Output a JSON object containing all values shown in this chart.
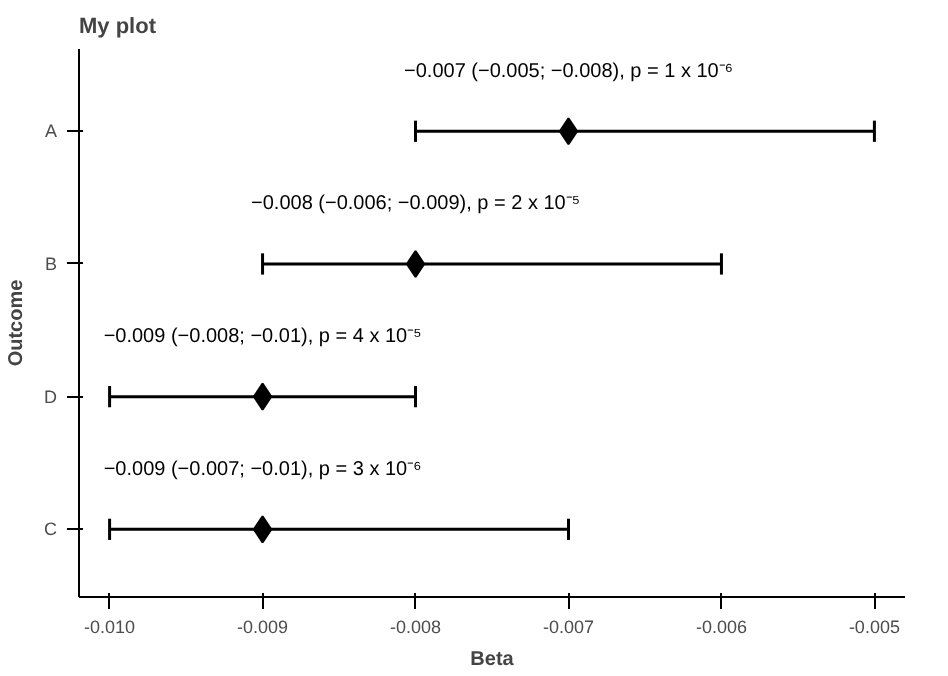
{
  "chart_data": {
    "type": "scatter",
    "orientation": "horizontal",
    "title": "My plot",
    "xlabel": "Beta",
    "ylabel": "Outcome",
    "categories": [
      "A",
      "B",
      "D",
      "C"
    ],
    "values": [
      -0.007,
      -0.008,
      -0.009,
      -0.009
    ],
    "errors": [
      [
        -0.008,
        -0.005
      ],
      [
        -0.009,
        -0.006
      ],
      [
        -0.01,
        -0.008
      ],
      [
        -0.01,
        -0.007
      ]
    ],
    "color": "#000000",
    "marker": "diamond",
    "grid": false,
    "xlim": [
      -0.0102,
      -0.0048
    ],
    "xticks": [
      {
        "value": -0.01,
        "label": "-0.010"
      },
      {
        "value": -0.009,
        "label": "-0.009"
      },
      {
        "value": -0.008,
        "label": "-0.008"
      },
      {
        "value": -0.007,
        "label": "-0.007"
      },
      {
        "value": -0.006,
        "label": "-0.006"
      },
      {
        "value": -0.005,
        "label": "-0.005"
      }
    ],
    "annotations": [
      {
        "text": "−0.007 (−0.005; −0.008), p = 1 x 10⁻⁶",
        "x": -0.007,
        "y": "A"
      },
      {
        "text": "−0.008 (−0.006; −0.009), p = 2 x 10⁻⁵",
        "x": -0.008,
        "y": "B"
      },
      {
        "text": "−0.009 (−0.008; −0.01), p = 4 x 10⁻⁵",
        "x": -0.009,
        "y": "D"
      },
      {
        "text": "−0.009 (−0.007; −0.01), p = 3 x 10⁻⁶",
        "x": -0.009,
        "y": "C"
      }
    ]
  }
}
